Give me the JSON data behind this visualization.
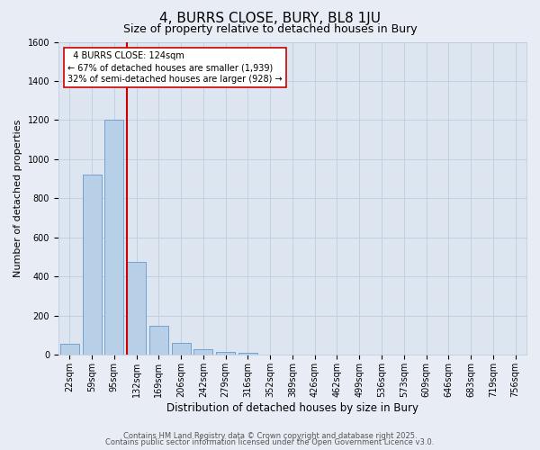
{
  "title": "4, BURRS CLOSE, BURY, BL8 1JU",
  "subtitle": "Size of property relative to detached houses in Bury",
  "xlabel": "Distribution of detached houses by size in Bury",
  "ylabel": "Number of detached properties",
  "bar_labels": [
    "22sqm",
    "59sqm",
    "95sqm",
    "132sqm",
    "169sqm",
    "206sqm",
    "242sqm",
    "279sqm",
    "316sqm",
    "352sqm",
    "389sqm",
    "426sqm",
    "462sqm",
    "499sqm",
    "536sqm",
    "573sqm",
    "609sqm",
    "646sqm",
    "683sqm",
    "719sqm",
    "756sqm"
  ],
  "bar_values": [
    55,
    920,
    1200,
    475,
    150,
    60,
    30,
    15,
    10,
    0,
    0,
    0,
    0,
    0,
    0,
    0,
    0,
    0,
    0,
    0,
    0
  ],
  "bar_color": "#b8cfe8",
  "bar_edgecolor": "#6699cc",
  "background_color": "#e8edf5",
  "plot_bg_color": "#dce5f0",
  "grid_color": "#c0cce0",
  "vline_x_index": 3,
  "vline_color": "#cc0000",
  "ylim": [
    0,
    1600
  ],
  "yticks": [
    0,
    200,
    400,
    600,
    800,
    1000,
    1200,
    1400,
    1600
  ],
  "annotation_title": "4 BURRS CLOSE: 124sqm",
  "annotation_line1": "← 67% of detached houses are smaller (1,939)",
  "annotation_line2": "32% of semi-detached houses are larger (928) →",
  "annotation_box_facecolor": "#ffffff",
  "annotation_box_edgecolor": "#cc0000",
  "footer1": "Contains HM Land Registry data © Crown copyright and database right 2025.",
  "footer2": "Contains public sector information licensed under the Open Government Licence v3.0.",
  "title_fontsize": 11,
  "subtitle_fontsize": 9,
  "xlabel_fontsize": 8.5,
  "ylabel_fontsize": 8,
  "tick_fontsize": 7,
  "annotation_fontsize": 7,
  "footer_fontsize": 6
}
